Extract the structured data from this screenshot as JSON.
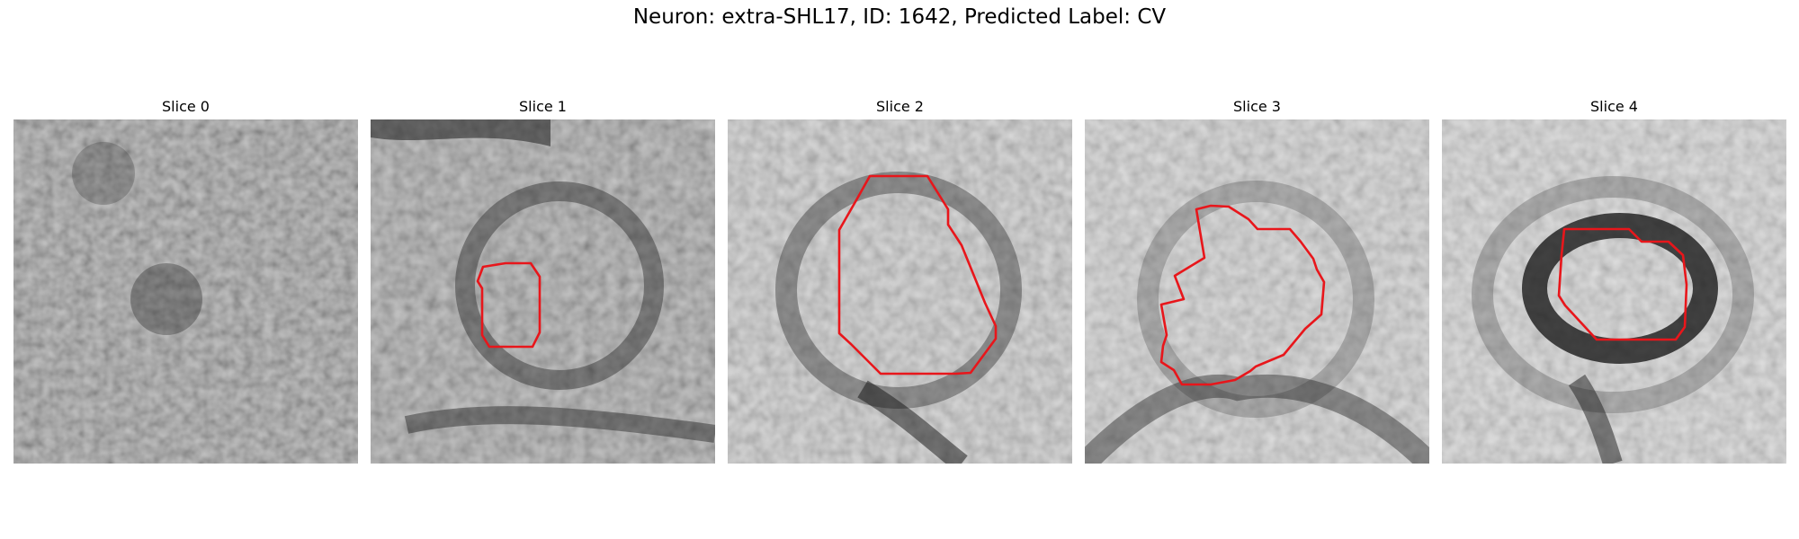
{
  "figure": {
    "title": "Neuron: extra-SHL17, ID: 1642, Predicted Label: CV"
  },
  "panels": [
    {
      "title": "Slice 0"
    },
    {
      "title": "Slice 1"
    },
    {
      "title": "Slice 2"
    },
    {
      "title": "Slice 3"
    },
    {
      "title": "Slice 4"
    }
  ],
  "colors": {
    "contour": "#e8161b",
    "background": "#ffffff"
  }
}
